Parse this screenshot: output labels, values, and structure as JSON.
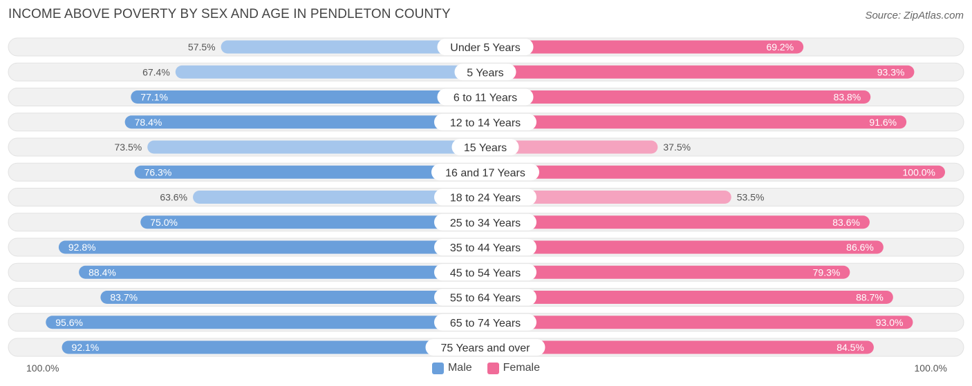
{
  "title": "INCOME ABOVE POVERTY BY SEX AND AGE IN PENDLETON COUNTY",
  "source": "Source: ZipAtlas.com",
  "axis": {
    "left_label": "100.0%",
    "right_label": "100.0%"
  },
  "legend": [
    {
      "label": "Male",
      "color": "#6a9fdb"
    },
    {
      "label": "Female",
      "color": "#f06b98"
    }
  ],
  "colors": {
    "male_strong": "#6a9fdb",
    "male_light": "#a5c6ec",
    "female_strong": "#f06b98",
    "female_light": "#f5a3bf",
    "row_bg": "#f1f1f1"
  },
  "chart_data": {
    "type": "bar",
    "orientation": "horizontal-diverging",
    "title": "INCOME ABOVE POVERTY BY SEX AND AGE IN PENDLETON COUNTY",
    "categories": [
      "Under 5 Years",
      "5 Years",
      "6 to 11 Years",
      "12 to 14 Years",
      "15 Years",
      "16 and 17 Years",
      "18 to 24 Years",
      "25 to 34 Years",
      "35 to 44 Years",
      "45 to 54 Years",
      "55 to 64 Years",
      "65 to 74 Years",
      "75 Years and over"
    ],
    "series": [
      {
        "name": "Male",
        "values": [
          57.5,
          67.4,
          77.1,
          78.4,
          73.5,
          76.3,
          63.6,
          75.0,
          92.8,
          88.4,
          83.7,
          95.6,
          92.1
        ],
        "labels": [
          "57.5%",
          "67.4%",
          "77.1%",
          "78.4%",
          "73.5%",
          "76.3%",
          "63.6%",
          "75.0%",
          "92.8%",
          "88.4%",
          "83.7%",
          "95.6%",
          "92.1%"
        ]
      },
      {
        "name": "Female",
        "values": [
          69.2,
          93.3,
          83.8,
          91.6,
          37.5,
          100.0,
          53.5,
          83.6,
          86.6,
          79.3,
          88.7,
          93.0,
          84.5
        ],
        "labels": [
          "69.2%",
          "93.3%",
          "83.8%",
          "91.6%",
          "37.5%",
          "100.0%",
          "53.5%",
          "83.6%",
          "86.6%",
          "79.3%",
          "88.7%",
          "93.0%",
          "84.5%"
        ]
      }
    ],
    "xlim": [
      0,
      100
    ],
    "xlabel": "",
    "ylabel": "",
    "legend_position": "bottom-center"
  }
}
